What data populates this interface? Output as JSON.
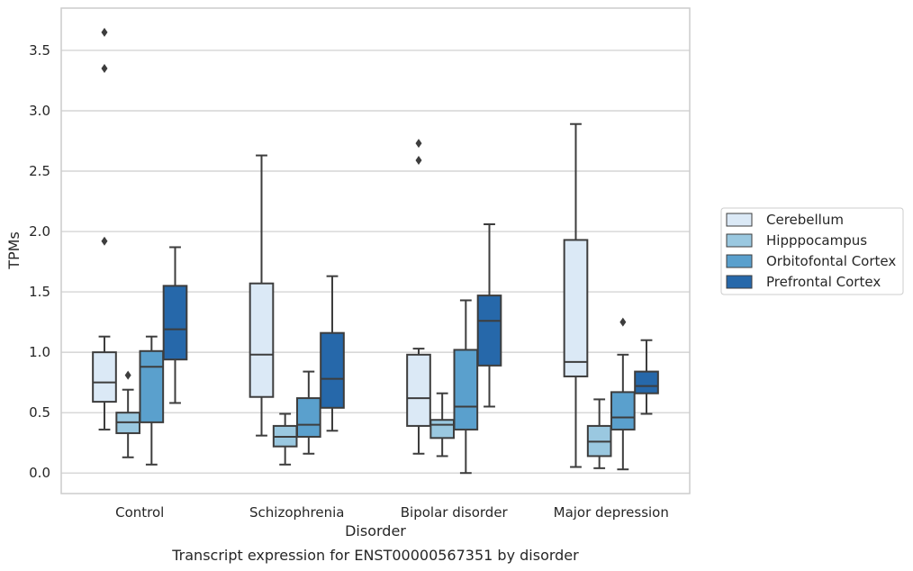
{
  "chart_data": {
    "type": "box",
    "caption": "Transcript expression for ENST00000567351 by disorder",
    "xlabel": "Disorder",
    "ylabel": "TPMs",
    "ylim": [
      -0.17,
      3.85
    ],
    "yticks": [
      0.0,
      0.5,
      1.0,
      1.5,
      2.0,
      2.5,
      3.0,
      3.5
    ],
    "ytick_labels": [
      "0.0",
      "0.5",
      "1.0",
      "1.5",
      "2.0",
      "2.5",
      "3.0",
      "3.5"
    ],
    "grid": true,
    "legend_position": "center-right outside",
    "categories": [
      "Control",
      "Schizophrenia",
      "Bipolar disorder",
      "Major depression"
    ],
    "series": [
      {
        "name": "Cerebellum",
        "color": "#dbe9f6",
        "boxes": [
          {
            "whislo": 0.36,
            "q1": 0.59,
            "med": 0.75,
            "q3": 1.0,
            "whishi": 1.13,
            "fliers": [
              1.92,
              3.35,
              3.65
            ]
          },
          {
            "whislo": 0.31,
            "q1": 0.63,
            "med": 0.98,
            "q3": 1.57,
            "whishi": 2.63,
            "fliers": []
          },
          {
            "whislo": 0.16,
            "q1": 0.39,
            "med": 0.62,
            "q3": 0.98,
            "whishi": 1.03,
            "fliers": [
              2.59,
              2.73
            ]
          },
          {
            "whislo": 0.05,
            "q1": 0.8,
            "med": 0.92,
            "q3": 1.93,
            "whishi": 2.89,
            "fliers": []
          }
        ]
      },
      {
        "name": "Hipppocampus",
        "color": "#9ac8e0",
        "boxes": [
          {
            "whislo": 0.13,
            "q1": 0.33,
            "med": 0.42,
            "q3": 0.5,
            "whishi": 0.69,
            "fliers": [
              0.81
            ]
          },
          {
            "whislo": 0.07,
            "q1": 0.22,
            "med": 0.3,
            "q3": 0.39,
            "whishi": 0.49,
            "fliers": []
          },
          {
            "whislo": 0.14,
            "q1": 0.29,
            "med": 0.4,
            "q3": 0.44,
            "whishi": 0.66,
            "fliers": []
          },
          {
            "whislo": 0.04,
            "q1": 0.14,
            "med": 0.26,
            "q3": 0.39,
            "whishi": 0.61,
            "fliers": []
          }
        ]
      },
      {
        "name": "Orbitofontal Cortex",
        "color": "#5aa0cd",
        "boxes": [
          {
            "whislo": 0.07,
            "q1": 0.42,
            "med": 0.88,
            "q3": 1.01,
            "whishi": 1.13,
            "fliers": []
          },
          {
            "whislo": 0.16,
            "q1": 0.3,
            "med": 0.4,
            "q3": 0.62,
            "whishi": 0.84,
            "fliers": []
          },
          {
            "whislo": 0.0,
            "q1": 0.36,
            "med": 0.55,
            "q3": 1.02,
            "whishi": 1.43,
            "fliers": []
          },
          {
            "whislo": 0.03,
            "q1": 0.36,
            "med": 0.46,
            "q3": 0.67,
            "whishi": 0.98,
            "fliers": [
              1.25
            ]
          }
        ]
      },
      {
        "name": "Prefrontal Cortex",
        "color": "#2668aa",
        "boxes": [
          {
            "whislo": 0.58,
            "q1": 0.94,
            "med": 1.19,
            "q3": 1.55,
            "whishi": 1.87,
            "fliers": []
          },
          {
            "whislo": 0.35,
            "q1": 0.54,
            "med": 0.78,
            "q3": 1.16,
            "whishi": 1.63,
            "fliers": []
          },
          {
            "whislo": 0.55,
            "q1": 0.89,
            "med": 1.26,
            "q3": 1.47,
            "whishi": 2.06,
            "fliers": []
          },
          {
            "whislo": 0.49,
            "q1": 0.66,
            "med": 0.72,
            "q3": 0.84,
            "whishi": 1.1,
            "fliers": []
          }
        ]
      }
    ]
  }
}
